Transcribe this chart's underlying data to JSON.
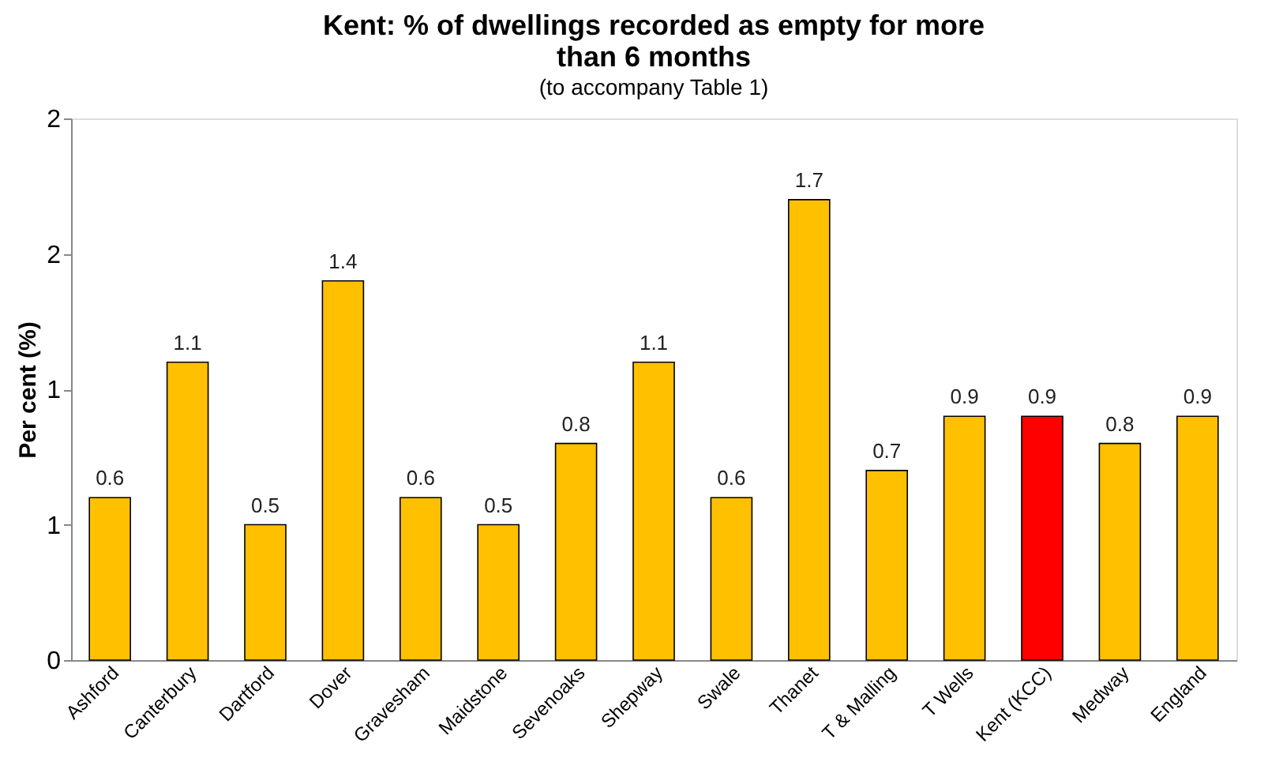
{
  "chart_data": {
    "type": "bar",
    "title": [
      "Kent: % of dwellings recorded as empty for more",
      "than 6 months"
    ],
    "annotations": [
      "(to accompany Table 1)"
    ],
    "ylabel": "Per cent (%)",
    "categories": [
      "Ashford",
      "Canterbury",
      "Dartford",
      "Dover",
      "Gravesham",
      "Maidstone",
      "Sevenoaks",
      "Shepway",
      "Swale",
      "Thanet",
      "T & Malling",
      "T Wells",
      "Kent (KCC)",
      "Medway",
      "England"
    ],
    "values": [
      0.6,
      1.1,
      0.5,
      1.4,
      0.6,
      0.5,
      0.8,
      1.1,
      0.6,
      1.7,
      0.7,
      0.9,
      0.9,
      0.8,
      0.9
    ],
    "colors": [
      "#ffc000",
      "#ffc000",
      "#ffc000",
      "#ffc000",
      "#ffc000",
      "#ffc000",
      "#ffc000",
      "#ffc000",
      "#ffc000",
      "#ffc000",
      "#ffc000",
      "#ffc000",
      "#ff0000",
      "#ffc000",
      "#ffc000"
    ],
    "ylim": [
      0,
      2
    ],
    "yticks": [
      0,
      {
        "value": 0.5,
        "label": "1"
      },
      1,
      {
        "value": 1.5,
        "label": "2"
      },
      2
    ],
    "data_labels": true,
    "grid": false
  }
}
